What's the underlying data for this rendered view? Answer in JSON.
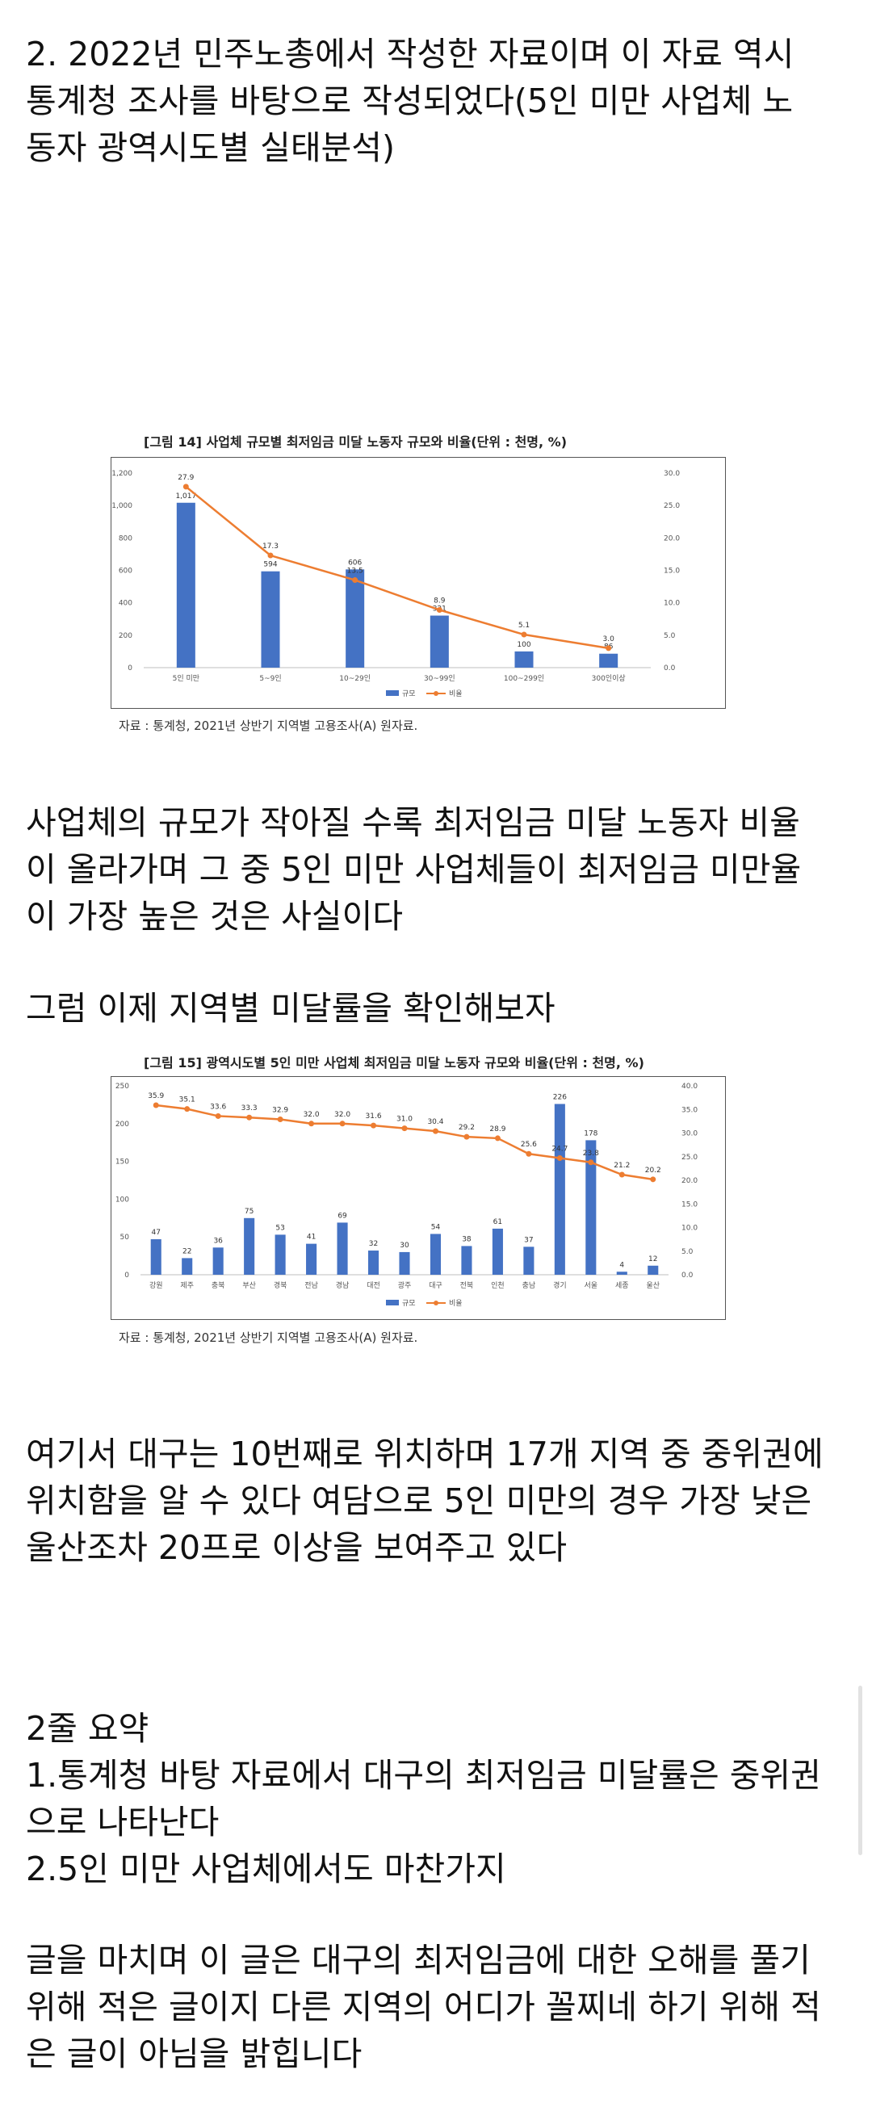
{
  "post": {
    "intro": [
      "2. 2022년 민주노총에서 작성한 자료이며 이 자료 역시",
      "통계청 조사를 바탕으로 작성되었다(5인 미만 사업체 노",
      "동자 광역시도별 실태분석)"
    ],
    "paragraph_size": [
      "사업체의 규모가 작아질 수록 최저임금 미달 노동자 비율",
      "이 올라가며 그 중 5인 미만 사업체들이 최저임금 미만율",
      "이 가장 높은 것은 사실이다"
    ],
    "paragraph_region_intro": [
      "그럼 이제 지역별 미달률을 확인해보자"
    ],
    "paragraph_daegu": [
      "여기서 대구는 10번째로 위치하며 17개 지역 중 중위권에",
      "위치함을 알 수 있다 여담으로 5인 미만의 경우 가장 낮은",
      "울산조차 20프로 이상을 보여주고 있다"
    ],
    "summary": [
      "2줄 요약",
      "1.통계청 바탕 자료에서 대구의 최저임금 미달률은 중위권",
      "으로 나타난다",
      "2.5인 미만 사업체에서도 마찬가지"
    ],
    "closing": [
      "글을 마치며 이 글은 대구의 최저임금에 대한 오해를 풀기",
      "위해 적은 글이지 다른 지역의 어디가 꼴찌네 하기 위해 적",
      "은 글이 아님을 밝힙니다"
    ]
  },
  "colors": {
    "bar": "#4472c4",
    "line": "#ed7d31",
    "text": "#111111"
  },
  "chart_data": [
    {
      "type": "bar",
      "title": "[그림 14] 사업체 규모별 최저임금 미달 노동자 규모와 비율(단위 : 천명, %)",
      "source": "자료 : 통계청, 2021년 상반기 지역별 고용조사(A) 원자료.",
      "categories": [
        "5인 미만",
        "5~9인",
        "10~29인",
        "30~99인",
        "100~299인",
        "300인이상"
      ],
      "series": [
        {
          "name": "규모",
          "type": "bar",
          "axis": "left",
          "values": [
            1017,
            594,
            606,
            321,
            100,
            86
          ]
        },
        {
          "name": "비율",
          "type": "line",
          "axis": "right",
          "values": [
            27.9,
            17.3,
            13.5,
            8.9,
            5.1,
            3.0
          ]
        }
      ],
      "bar_labels": [
        "1,017",
        "594",
        "606",
        "321",
        "100",
        "86"
      ],
      "line_labels": [
        "27.9",
        "17.3",
        "13.5",
        "8.9",
        "5.1",
        "3.0"
      ],
      "ylim_left": [
        0,
        1200
      ],
      "ylim_right": [
        0,
        30
      ],
      "yticks_left": [
        "0",
        "200",
        "400",
        "600",
        "800",
        "1,000",
        "1,200"
      ],
      "yticks_right": [
        "0.0",
        "5.0",
        "10.0",
        "15.0",
        "20.0",
        "25.0",
        "30.0"
      ],
      "grid": false,
      "legend": "bottom"
    },
    {
      "type": "bar",
      "title": "[그림 15] 광역시도별 5인 미만 사업체 최저임금 미달 노동자 규모와 비율(단위 : 천명, %)",
      "source": "자료 : 통계청, 2021년 상반기 지역별 고용조사(A) 원자료.",
      "categories": [
        "강원",
        "제주",
        "충북",
        "부산",
        "경북",
        "전남",
        "경남",
        "대전",
        "광주",
        "대구",
        "전북",
        "인천",
        "충남",
        "경기",
        "서울",
        "세종",
        "울산"
      ],
      "series": [
        {
          "name": "규모",
          "type": "bar",
          "axis": "left",
          "values": [
            47,
            22,
            36,
            75,
            53,
            41,
            69,
            32,
            30,
            54,
            38,
            61,
            37,
            226,
            178,
            4,
            12
          ]
        },
        {
          "name": "비율",
          "type": "line",
          "axis": "right",
          "values": [
            35.9,
            35.1,
            33.6,
            33.3,
            32.9,
            32.0,
            32.0,
            31.6,
            31.0,
            30.4,
            29.2,
            28.9,
            25.6,
            24.7,
            23.8,
            21.2,
            20.2
          ]
        }
      ],
      "bar_labels": [
        "47",
        "22",
        "36",
        "75",
        "53",
        "41",
        "69",
        "32",
        "30",
        "54",
        "38",
        "61",
        "37",
        "226",
        "178",
        "4",
        "12"
      ],
      "line_labels": [
        "35.9",
        "35.1",
        "33.6",
        "33.3",
        "32.9",
        "32.0",
        "32.0",
        "31.6",
        "31.0",
        "30.4",
        "29.2",
        "28.9",
        "25.6",
        "24.7",
        "23.8",
        "21.2",
        "20.2"
      ],
      "ylim_left": [
        0,
        250
      ],
      "ylim_right": [
        0,
        40
      ],
      "yticks_left": [
        "0",
        "50",
        "100",
        "150",
        "200",
        "250"
      ],
      "yticks_right": [
        "0.0",
        "5.0",
        "10.0",
        "15.0",
        "20.0",
        "25.0",
        "30.0",
        "35.0",
        "40.0"
      ],
      "grid": false,
      "legend": "bottom"
    }
  ]
}
